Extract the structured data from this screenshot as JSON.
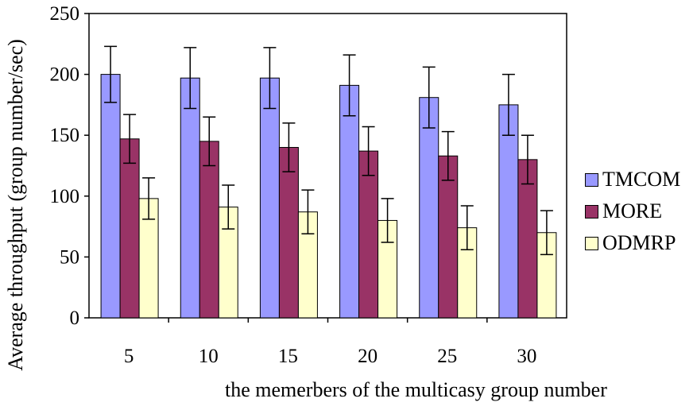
{
  "chart_data": {
    "type": "bar",
    "categories": [
      "5",
      "10",
      "15",
      "20",
      "25",
      "30"
    ],
    "series": [
      {
        "name": "TMCOM",
        "color": "#9999ff",
        "values": [
          200,
          197,
          197,
          191,
          181,
          175
        ],
        "errors": [
          23,
          25,
          25,
          25,
          25,
          25
        ]
      },
      {
        "name": "MORE",
        "color": "#993366",
        "values": [
          147,
          145,
          140,
          137,
          133,
          130
        ],
        "errors": [
          20,
          20,
          20,
          20,
          20,
          20
        ]
      },
      {
        "name": "ODMRP",
        "color": "#ffffcc",
        "values": [
          98,
          91,
          87,
          80,
          74,
          70
        ],
        "errors": [
          17,
          18,
          18,
          18,
          18,
          18
        ]
      }
    ],
    "ylim": [
      0,
      250
    ],
    "yticks": [
      0,
      50,
      100,
      150,
      200,
      250
    ],
    "xlabel": "the memerbers of the multicasy group number",
    "ylabel": "Average throughput (group number/sec)",
    "legend_position": "right",
    "grid": false
  }
}
